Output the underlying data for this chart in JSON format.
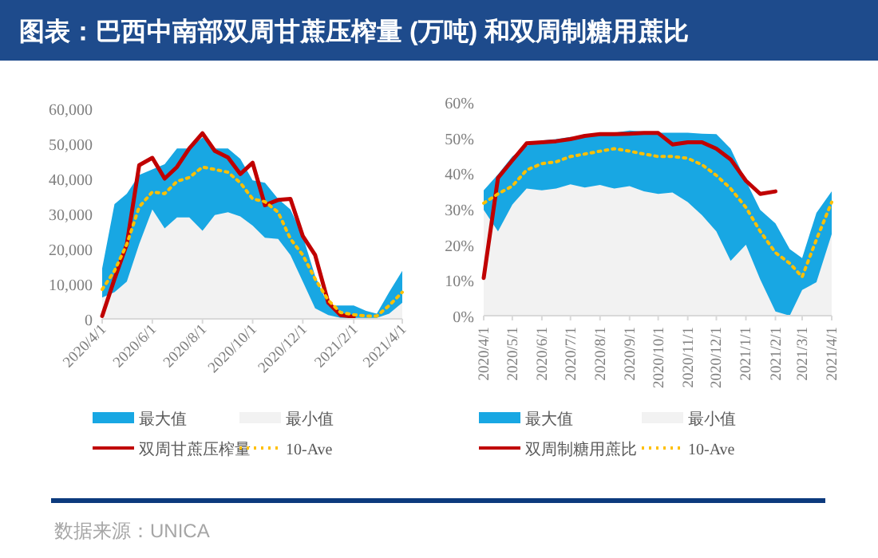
{
  "chart_data": [
    {
      "type": "line",
      "title": "图表：巴西中南部双周甘蔗压榨量 (万吨) 和双周制糖用蔗比",
      "x": [
        "2020-04-01",
        "2020-04-16",
        "2020-05-01",
        "2020-05-16",
        "2020-06-01",
        "2020-06-16",
        "2020-07-01",
        "2020-07-16",
        "2020-08-01",
        "2020-08-16",
        "2020-09-01",
        "2020-09-16",
        "2020-10-01",
        "2020-10-16",
        "2020-11-01",
        "2020-11-16",
        "2020-12-01",
        "2020-12-16",
        "2021-01-01",
        "2021-01-16",
        "2021-02-01",
        "2021-02-16",
        "2021-03-01",
        "2021-03-16",
        "2021-04-01"
      ],
      "series": [
        {
          "name": "最大值",
          "type": "area",
          "color": "#18a7e3",
          "values": [
            14400,
            32700,
            35700,
            41000,
            42600,
            44100,
            48600,
            48600,
            51700,
            48600,
            48600,
            45600,
            39500,
            38800,
            34200,
            31200,
            23600,
            12200,
            3800,
            3800,
            3800,
            2300,
            1500,
            7600,
            13700
          ]
        },
        {
          "name": "最小值",
          "type": "area",
          "color": "#f2f2f2",
          "values": [
            6100,
            7600,
            10600,
            21300,
            31200,
            25800,
            28900,
            28900,
            25100,
            29600,
            30400,
            29200,
            26600,
            23100,
            22800,
            18200,
            10600,
            3000,
            1100,
            300,
            300,
            300,
            300,
            1500,
            4600
          ]
        },
        {
          "name": "双周甘蔗压榨量",
          "type": "line",
          "color": "#c00000",
          "values": [
            800,
            11400,
            21300,
            43800,
            45900,
            40000,
            43300,
            48600,
            52900,
            47900,
            46000,
            41300,
            44500,
            32400,
            33900,
            34200,
            23600,
            18200,
            4600,
            1100,
            600,
            null,
            null,
            null,
            null
          ]
        },
        {
          "name": "10-Ave",
          "type": "line",
          "line_style": "dotted",
          "color": "#ffc000",
          "values": [
            8400,
            13700,
            21300,
            31900,
            36200,
            35700,
            39200,
            40300,
            43300,
            42600,
            41800,
            38800,
            34200,
            33400,
            30400,
            22800,
            18200,
            11400,
            5300,
            1800,
            1200,
            800,
            800,
            3800,
            7600
          ]
        }
      ],
      "xlim": [
        "2020-04-01",
        "2021-04-01"
      ],
      "xticks": [
        {
          "value": "2020-04-01",
          "label": "2020/4/1"
        },
        {
          "value": "2020-06-01",
          "label": "2020/6/1"
        },
        {
          "value": "2020-08-01",
          "label": "2020/8/1"
        },
        {
          "value": "2020-10-01",
          "label": "2020/10/1"
        },
        {
          "value": "2020-12-01",
          "label": "2020/12/1"
        },
        {
          "value": "2021-02-01",
          "label": "2021/2/1"
        },
        {
          "value": "2021-04-01",
          "label": "2021/4/1"
        }
      ],
      "ylim": [
        0,
        60000
      ],
      "yticks": [
        0,
        {
          "value": 10000,
          "label": "10,000"
        },
        {
          "value": 20000,
          "label": "20,000"
        },
        {
          "value": 30000,
          "label": "30,000"
        },
        {
          "value": 40000,
          "label": "40,000"
        },
        {
          "value": 50000,
          "label": "50,000"
        },
        {
          "value": 60000,
          "label": "60,000"
        }
      ],
      "grid": false,
      "legend": "bottom"
    },
    {
      "type": "line",
      "x": [
        "2020-04-01",
        "2020-04-16",
        "2020-05-01",
        "2020-05-16",
        "2020-06-01",
        "2020-06-16",
        "2020-07-01",
        "2020-07-16",
        "2020-08-01",
        "2020-08-16",
        "2020-09-01",
        "2020-09-16",
        "2020-10-01",
        "2020-10-16",
        "2020-11-01",
        "2020-11-16",
        "2020-12-01",
        "2020-12-16",
        "2021-01-01",
        "2021-01-16",
        "2021-02-01",
        "2021-02-16",
        "2021-03-01",
        "2021-03-16",
        "2021-04-01"
      ],
      "series": [
        {
          "name": "最大值",
          "type": "area",
          "color": "#18a7e3",
          "values": [
            35.2,
            39.7,
            44.7,
            47.7,
            49.2,
            49.6,
            50.2,
            50.2,
            50.7,
            51.4,
            52.0,
            51.7,
            51.4,
            51.4,
            51.4,
            51.1,
            51.0,
            46.9,
            37.9,
            29.7,
            25.9,
            18.7,
            16.2,
            28.9,
            34.9
          ]
        },
        {
          "name": "最小值",
          "type": "area",
          "color": "#f2f2f2",
          "values": [
            29.7,
            23.7,
            31.2,
            35.7,
            35.2,
            35.7,
            36.9,
            36.0,
            36.7,
            35.7,
            36.4,
            34.9,
            34.2,
            34.6,
            31.9,
            28.2,
            23.7,
            15.4,
            19.9,
            10.2,
            1.2,
            0,
            7.2,
            9.4,
            22.9
          ]
        },
        {
          "name": "双周制糖用蔗比",
          "type": "line",
          "color": "#c00000",
          "values": [
            10.6,
            38.7,
            43.6,
            48.4,
            48.7,
            49.0,
            49.6,
            50.5,
            51.0,
            51.0,
            51.1,
            51.3,
            51.3,
            48.1,
            48.7,
            48.7,
            46.9,
            43.9,
            37.9,
            34.2,
            34.9,
            null,
            null,
            null,
            null
          ]
        },
        {
          "name": "10-Ave",
          "type": "line",
          "line_style": "dotted",
          "color": "#ffc000",
          "values": [
            31.6,
            34.2,
            36.4,
            40.9,
            42.7,
            43.2,
            44.7,
            45.4,
            46.2,
            46.9,
            46.2,
            45.4,
            44.7,
            44.7,
            44.2,
            42.4,
            39.4,
            35.7,
            30.4,
            23.7,
            17.7,
            14.7,
            10.9,
            21.4,
            31.9
          ]
        }
      ],
      "xlim": [
        "2020-04-01",
        "2021-04-01"
      ],
      "xticks": [
        {
          "value": "2020-04-01",
          "label": "2020/4/1"
        },
        {
          "value": "2020-05-01",
          "label": "2020/5/1"
        },
        {
          "value": "2020-06-01",
          "label": "2020/6/1"
        },
        {
          "value": "2020-07-01",
          "label": "2020/7/1"
        },
        {
          "value": "2020-08-01",
          "label": "2020/8/1"
        },
        {
          "value": "2020-09-01",
          "label": "2020/9/1"
        },
        {
          "value": "2020-10-01",
          "label": "2020/10/1"
        },
        {
          "value": "2020-11-01",
          "label": "2020/11/1"
        },
        {
          "value": "2020-12-01",
          "label": "2020/12/1"
        },
        {
          "value": "2021-01-01",
          "label": "2021/1/1"
        },
        {
          "value": "2021-02-01",
          "label": "2021/2/1"
        },
        {
          "value": "2021-03-01",
          "label": "2021/3/1"
        },
        {
          "value": "2021-04-01",
          "label": "2021/4/1"
        }
      ],
      "ylim": [
        0,
        60
      ],
      "yticks": [
        {
          "value": 0,
          "label": "0%"
        },
        {
          "value": 10,
          "label": "10%"
        },
        {
          "value": 20,
          "label": "20%"
        },
        {
          "value": 30,
          "label": "30%"
        },
        {
          "value": 40,
          "label": "40%"
        },
        {
          "value": 50,
          "label": "50%"
        },
        {
          "value": 60,
          "label": "60%"
        }
      ],
      "grid": false,
      "legend": "bottom",
      "annotations": [
        "数据来源：UNICA"
      ]
    }
  ]
}
